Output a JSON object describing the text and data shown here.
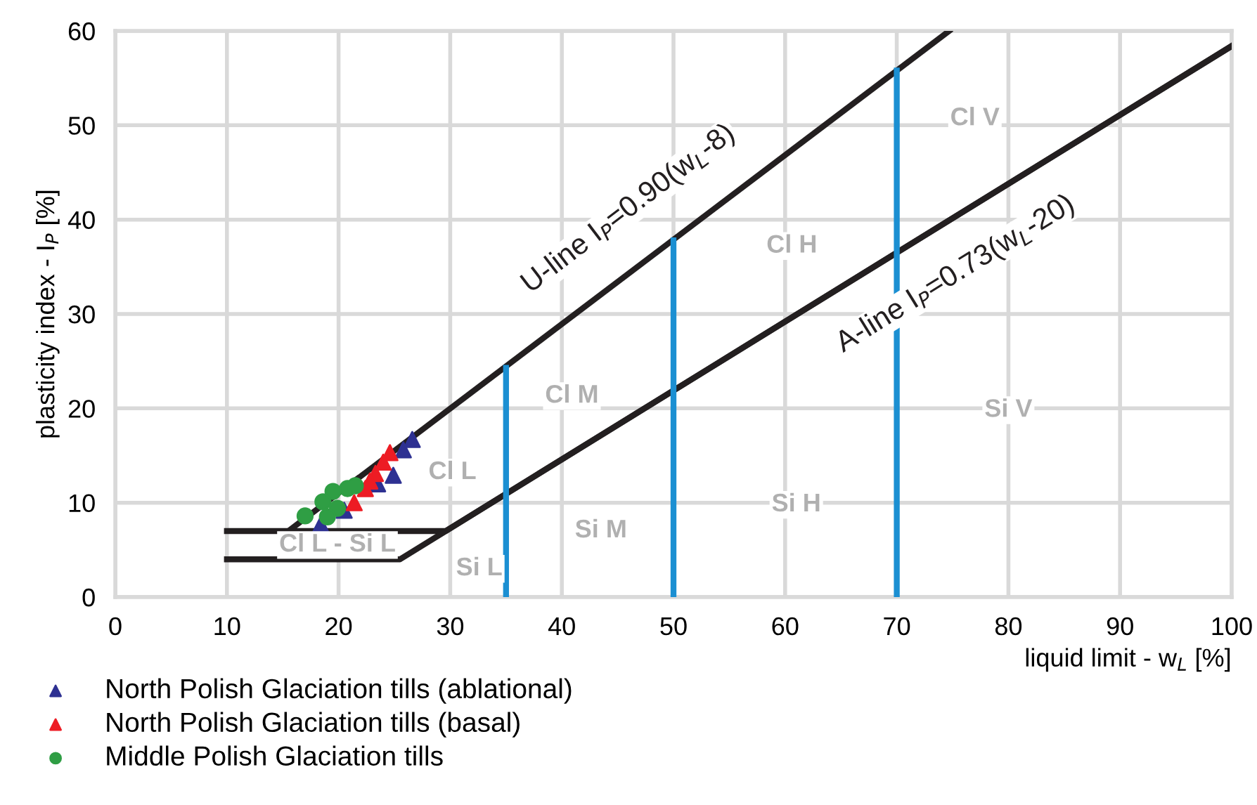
{
  "chart_data": {
    "type": "scatter",
    "xlabel": "liquid limit - w$_{L}$ [%]",
    "ylabel": "plasticity index - I$_{P}$ [%]",
    "xlim": [
      0,
      100
    ],
    "ylim": [
      0,
      60
    ],
    "xticks": [
      0,
      10,
      20,
      30,
      40,
      50,
      60,
      70,
      80,
      90,
      100
    ],
    "yticks": [
      0,
      10,
      20,
      30,
      40,
      50,
      60
    ],
    "grid": true,
    "legend": "bottom left",
    "series": [
      {
        "type": "line",
        "color": "#231f20",
        "x": [
          10,
          29.6,
          100
        ],
        "values": [
          7,
          7,
          58.4
        ]
      },
      {
        "type": "line",
        "color": "#231f20",
        "x": [
          10,
          25.5,
          100
        ],
        "values": [
          4,
          4,
          58.4
        ]
      },
      {
        "type": "line",
        "color": "#231f20",
        "x": [
          15.5,
          74.7
        ],
        "values": [
          7,
          60
        ]
      },
      {
        "type": "line",
        "color": "#1b8fd2",
        "x": [
          35,
          35
        ],
        "values": [
          0,
          24.3
        ]
      },
      {
        "type": "line",
        "color": "#1b8fd2",
        "x": [
          50,
          50
        ],
        "values": [
          0,
          37.8
        ]
      },
      {
        "type": "line",
        "color": "#1b8fd2",
        "x": [
          70,
          70
        ],
        "values": [
          0,
          55.8
        ]
      },
      {
        "name": "North Polish Glaciation tills (ablational)",
        "color": "#2e3192",
        "marker": "triangle",
        "x": [
          26.6,
          25.8,
          24.9,
          18.4,
          20.5,
          23.5
        ],
        "values": [
          16.7,
          15.6,
          12.9,
          7.7,
          9.2,
          12.0
        ]
      },
      {
        "name": "North Polish Glaciation tills (basal)",
        "color": "#ed1c24",
        "marker": "triangle",
        "x": [
          24.6,
          23.3,
          22.4,
          21.4,
          24.0,
          22.8
        ],
        "values": [
          15.3,
          13.1,
          11.5,
          10.0,
          14.3,
          12.3
        ]
      },
      {
        "name": "Middle Polish Glaciation tills",
        "color": "#2f9e44",
        "marker": "circle",
        "x": [
          20.8,
          19.5,
          18.6,
          17.0,
          19.9,
          19.0,
          21.5
        ],
        "values": [
          11.5,
          11.2,
          10.1,
          8.6,
          9.4,
          8.5,
          11.8
        ]
      }
    ],
    "annotations": [
      "U-line I$_{P}$=0.90(w$_{L}$-8)",
      "A-line I$_{P}$=0.73(w$_{L}$-20)",
      "Cl V",
      "Cl H",
      "Cl M",
      "Cl L",
      "Si V",
      "Si H",
      "Si M",
      "Si L",
      "Cl L - Si L"
    ]
  }
}
